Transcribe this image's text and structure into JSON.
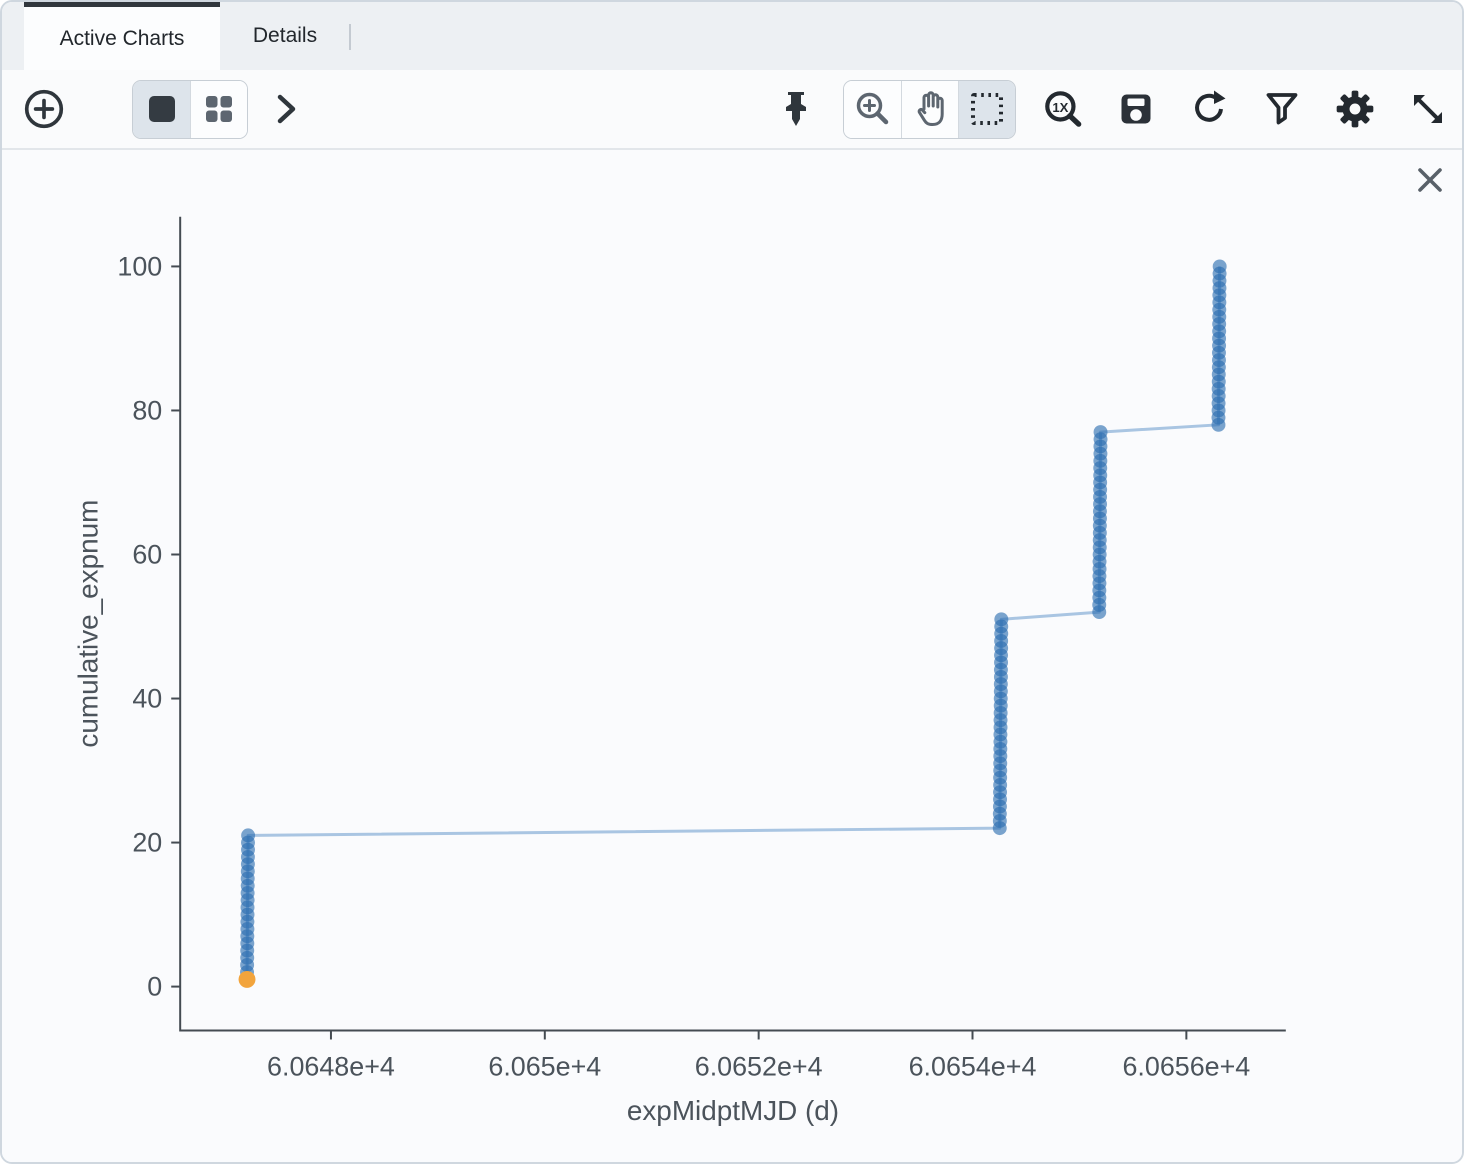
{
  "tabs": {
    "active_charts": "Active Charts",
    "details": "Details"
  },
  "toolbar": {
    "left_icons": [
      "add-chart-plus-circle",
      "single-view-square",
      "grid-view-squares",
      "chevron-right"
    ],
    "right_icons": [
      "pin",
      "zoom-in-magnifier",
      "pan-hand",
      "select-rectangle",
      "zoom-1x-magnifier",
      "save-floppy",
      "restore-rotate",
      "filter-funnel",
      "settings-gear",
      "expand-diagonal-arrows"
    ],
    "selected_view_mode": "single",
    "selected_drag_mode": "select",
    "selected_button_bg": "#dde4eb"
  },
  "chart_close_icon": "close-x",
  "chart_data": {
    "type": "scatter",
    "mode": "lines+markers",
    "title": "",
    "xlabel": "expMidptMJD (d)",
    "ylabel": "cumulative_expnum",
    "xlim": [
      60646.59,
      60656.93
    ],
    "ylim": [
      -6.1,
      106.9
    ],
    "grid": false,
    "legend": false,
    "x_ticks": [
      {
        "value": 60648,
        "label": "6.0648e+4"
      },
      {
        "value": 60650,
        "label": "6.065e+4"
      },
      {
        "value": 60652,
        "label": "6.0652e+4"
      },
      {
        "value": 60654,
        "label": "6.0654e+4"
      },
      {
        "value": 60656,
        "label": "6.0656e+4"
      }
    ],
    "y_ticks": [
      {
        "value": 0,
        "label": "0"
      },
      {
        "value": 20,
        "label": "20"
      },
      {
        "value": 40,
        "label": "40"
      },
      {
        "value": 60,
        "label": "60"
      },
      {
        "value": 80,
        "label": "80"
      },
      {
        "value": 100,
        "label": "100"
      }
    ],
    "axis_color": "#444b52",
    "tick_text_color": "#4b535b",
    "line_color": "#a9c5e2",
    "line_width": 3,
    "marker_color": "#2a6cb0",
    "marker_opacity": 0.62,
    "marker_radius": 7,
    "highlight_point": {
      "x": 60647.215,
      "y": 1,
      "color": "#f2a43c",
      "radius": 8.5
    },
    "series": [
      {
        "name": "cumulative_expnum",
        "points": [
          [
            60647.215,
            1
          ],
          [
            60647.2155,
            2
          ],
          [
            60647.216,
            3
          ],
          [
            60647.2165,
            4
          ],
          [
            60647.217,
            5
          ],
          [
            60647.2175,
            6
          ],
          [
            60647.218,
            7
          ],
          [
            60647.2185,
            8
          ],
          [
            60647.219,
            9
          ],
          [
            60647.2195,
            10
          ],
          [
            60647.22,
            11
          ],
          [
            60647.2205,
            12
          ],
          [
            60647.221,
            13
          ],
          [
            60647.2215,
            14
          ],
          [
            60647.222,
            15
          ],
          [
            60647.2225,
            16
          ],
          [
            60647.223,
            17
          ],
          [
            60647.2235,
            18
          ],
          [
            60647.224,
            19
          ],
          [
            60647.2245,
            20
          ],
          [
            60647.225,
            21
          ],
          [
            60654.255,
            22
          ],
          [
            60654.2555,
            23
          ],
          [
            60654.256,
            24
          ],
          [
            60654.2565,
            25
          ],
          [
            60654.257,
            26
          ],
          [
            60654.2575,
            27
          ],
          [
            60654.258,
            28
          ],
          [
            60654.2585,
            29
          ],
          [
            60654.259,
            30
          ],
          [
            60654.2595,
            31
          ],
          [
            60654.26,
            32
          ],
          [
            60654.2605,
            33
          ],
          [
            60654.261,
            34
          ],
          [
            60654.2615,
            35
          ],
          [
            60654.262,
            36
          ],
          [
            60654.2625,
            37
          ],
          [
            60654.263,
            38
          ],
          [
            60654.2635,
            39
          ],
          [
            60654.264,
            40
          ],
          [
            60654.2645,
            41
          ],
          [
            60654.265,
            42
          ],
          [
            60654.2655,
            43
          ],
          [
            60654.266,
            44
          ],
          [
            60654.2665,
            45
          ],
          [
            60654.267,
            46
          ],
          [
            60654.2675,
            47
          ],
          [
            60654.268,
            48
          ],
          [
            60654.2685,
            49
          ],
          [
            60654.269,
            50
          ],
          [
            60654.2695,
            51
          ],
          [
            60655.185,
            52
          ],
          [
            60655.1855,
            53
          ],
          [
            60655.186,
            54
          ],
          [
            60655.1865,
            55
          ],
          [
            60655.187,
            56
          ],
          [
            60655.1875,
            57
          ],
          [
            60655.188,
            58
          ],
          [
            60655.1885,
            59
          ],
          [
            60655.189,
            60
          ],
          [
            60655.1895,
            61
          ],
          [
            60655.19,
            62
          ],
          [
            60655.1905,
            63
          ],
          [
            60655.191,
            64
          ],
          [
            60655.1915,
            65
          ],
          [
            60655.192,
            66
          ],
          [
            60655.1925,
            67
          ],
          [
            60655.193,
            68
          ],
          [
            60655.1935,
            69
          ],
          [
            60655.194,
            70
          ],
          [
            60655.1945,
            71
          ],
          [
            60655.195,
            72
          ],
          [
            60655.1955,
            73
          ],
          [
            60655.196,
            74
          ],
          [
            60655.1965,
            75
          ],
          [
            60655.197,
            76
          ],
          [
            60655.1975,
            77
          ],
          [
            60656.3,
            78
          ],
          [
            60656.3005,
            79
          ],
          [
            60656.301,
            80
          ],
          [
            60656.3015,
            81
          ],
          [
            60656.302,
            82
          ],
          [
            60656.3025,
            83
          ],
          [
            60656.303,
            84
          ],
          [
            60656.3035,
            85
          ],
          [
            60656.304,
            86
          ],
          [
            60656.3045,
            87
          ],
          [
            60656.305,
            88
          ],
          [
            60656.3055,
            89
          ],
          [
            60656.306,
            90
          ],
          [
            60656.3065,
            91
          ],
          [
            60656.307,
            92
          ],
          [
            60656.3075,
            93
          ],
          [
            60656.308,
            94
          ],
          [
            60656.3085,
            95
          ],
          [
            60656.309,
            96
          ],
          [
            60656.3095,
            97
          ],
          [
            60656.31,
            98
          ],
          [
            60656.3105,
            99
          ],
          [
            60656.311,
            100
          ]
        ]
      }
    ]
  }
}
